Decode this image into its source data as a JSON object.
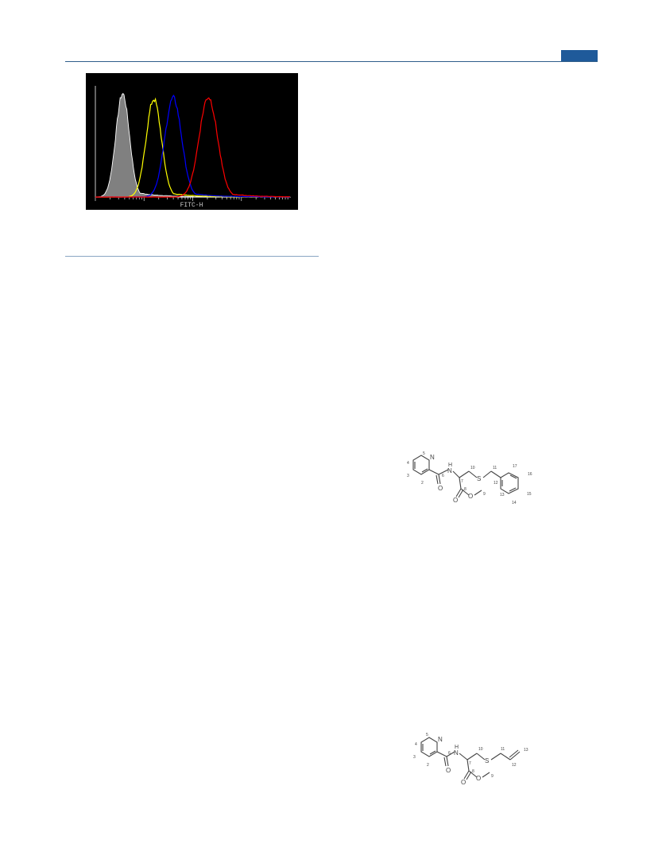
{
  "header": {
    "accent_color": "#1f5a9a",
    "rule_color": "#2f5d8a"
  },
  "figure_histogram": {
    "xlabel": "FITC-H",
    "background_color": "#000000",
    "chart_data": {
      "type": "area",
      "xlabel": "FITC-H",
      "ylabel": "",
      "title": "",
      "x_scale": "log",
      "grid": false,
      "series": [
        {
          "color": "#808080",
          "fill": true,
          "peak_position": 0.14,
          "peak_height": 0.93
        },
        {
          "color": "#ffff00",
          "fill": false,
          "peak_position": 0.3,
          "peak_height": 0.88
        },
        {
          "color": "#0000ff",
          "fill": false,
          "peak_position": 0.4,
          "peak_height": 0.89
        },
        {
          "color": "#ff0000",
          "fill": false,
          "peak_position": 0.58,
          "peak_height": 0.9
        }
      ]
    }
  },
  "structure_1": {
    "atoms": {
      "N_ring": "N",
      "NH": "H",
      "N_amide": "N",
      "S": "S",
      "O_carbonyl1": "O",
      "O_carbonyl2": "O",
      "O_ester": "O"
    },
    "numbers": [
      "1",
      "2",
      "3",
      "4",
      "5",
      "6",
      "7",
      "8",
      "9",
      "10",
      "11",
      "12",
      "13",
      "14",
      "15",
      "16",
      "17"
    ]
  },
  "structure_2": {
    "atoms": {
      "N_ring": "N",
      "NH": "H",
      "N_amide": "N",
      "S": "S",
      "O_carbonyl1": "O",
      "O_carbonyl2": "O",
      "O_ester": "O"
    },
    "numbers": [
      "2",
      "3",
      "4",
      "5",
      "6",
      "7",
      "8",
      "9",
      "10",
      "11",
      "12",
      "13"
    ]
  }
}
